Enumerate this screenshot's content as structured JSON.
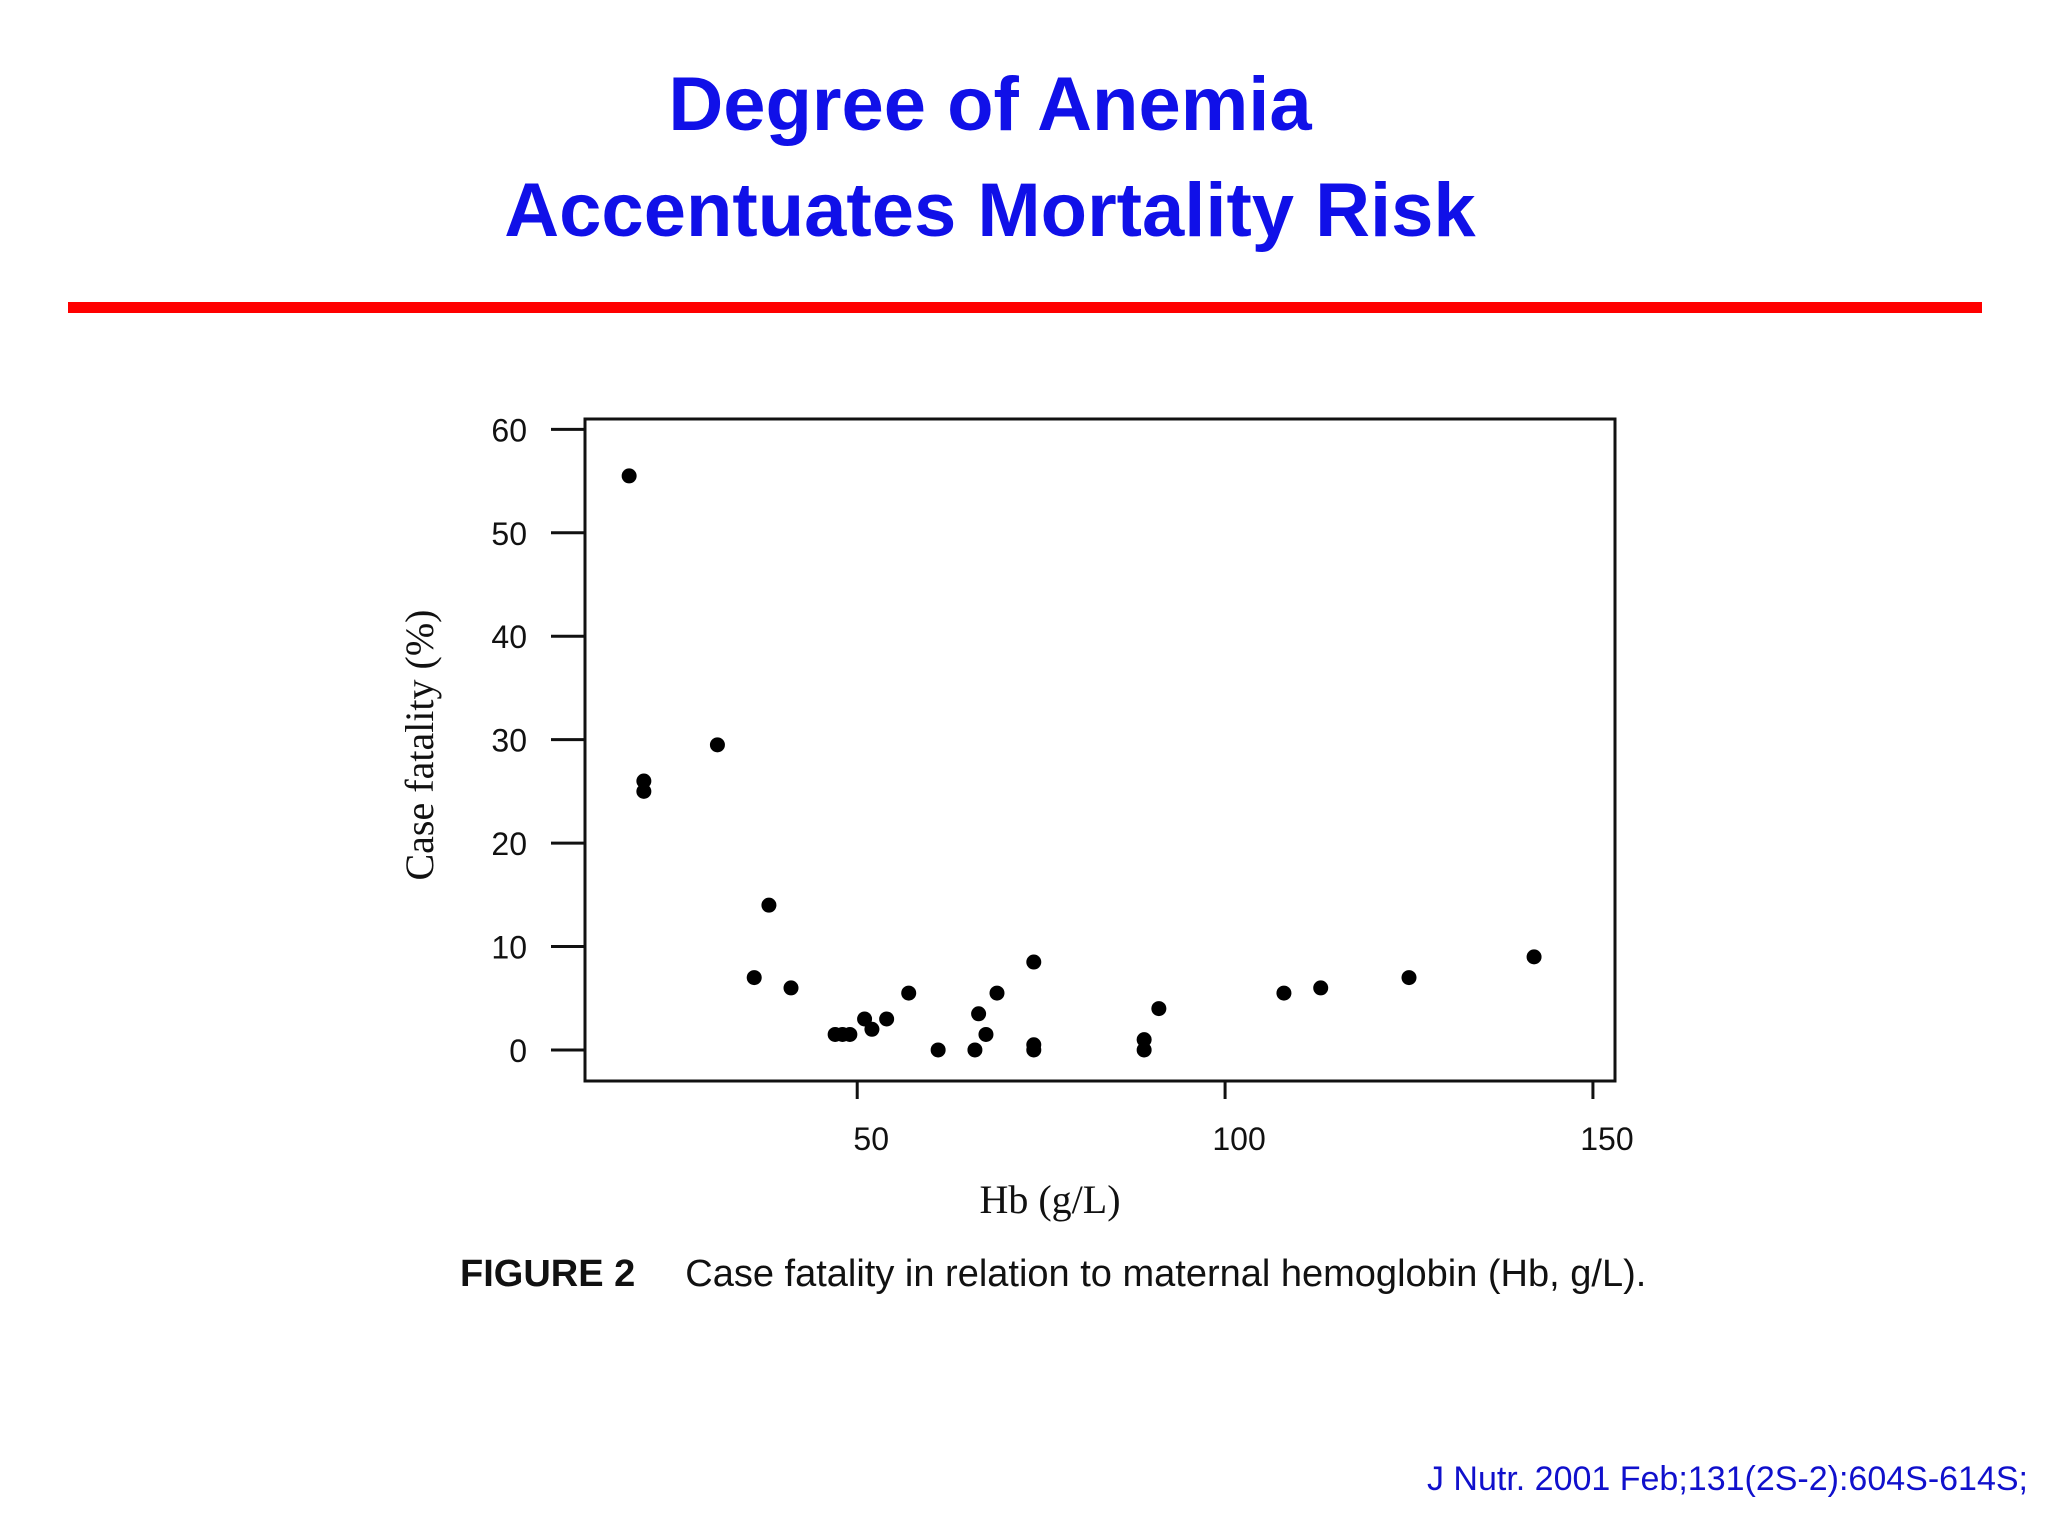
{
  "slide": {
    "title_line1": "Degree of Anemia",
    "title_line2": "Accentuates Mortality Risk",
    "rule_color": "#ff0000",
    "title_color": "#1010e8"
  },
  "chart_data": {
    "type": "scatter",
    "xlabel": "Hb (g/L)",
    "ylabel": "Case fatality (%)",
    "xlim": [
      13,
      153
    ],
    "ylim": [
      -3,
      61
    ],
    "x_ticks": [
      50,
      100,
      150
    ],
    "y_ticks": [
      0,
      10,
      20,
      30,
      40,
      50,
      60
    ],
    "x_tick_labels": [
      "50",
      "100",
      "150"
    ],
    "y_tick_labels": [
      "0",
      "10",
      "20",
      "30",
      "40",
      "50",
      "60"
    ],
    "grid": false,
    "points": [
      {
        "x": 19,
        "y": 55.5
      },
      {
        "x": 21,
        "y": 26
      },
      {
        "x": 21,
        "y": 25
      },
      {
        "x": 31,
        "y": 29.5
      },
      {
        "x": 36,
        "y": 7
      },
      {
        "x": 38,
        "y": 14
      },
      {
        "x": 41,
        "y": 6
      },
      {
        "x": 47,
        "y": 1.5
      },
      {
        "x": 48,
        "y": 1.5
      },
      {
        "x": 49,
        "y": 1.5
      },
      {
        "x": 51,
        "y": 3
      },
      {
        "x": 52,
        "y": 2
      },
      {
        "x": 54,
        "y": 3
      },
      {
        "x": 57,
        "y": 5.5
      },
      {
        "x": 61,
        "y": 0
      },
      {
        "x": 66,
        "y": 0
      },
      {
        "x": 66.5,
        "y": 3.5
      },
      {
        "x": 67.5,
        "y": 1.5
      },
      {
        "x": 69,
        "y": 5.5
      },
      {
        "x": 74,
        "y": 8.5
      },
      {
        "x": 74,
        "y": 0.5
      },
      {
        "x": 74,
        "y": 0
      },
      {
        "x": 89,
        "y": 1
      },
      {
        "x": 89,
        "y": 0
      },
      {
        "x": 91,
        "y": 4
      },
      {
        "x": 108,
        "y": 5.5
      },
      {
        "x": 113,
        "y": 6
      },
      {
        "x": 125,
        "y": 7
      },
      {
        "x": 142,
        "y": 9
      }
    ]
  },
  "caption": {
    "label": "FIGURE 2",
    "text": "Case fatality in relation to maternal hemoglobin (Hb, g/L)."
  },
  "citation": "J Nutr. 2001 Feb;131(2S-2):604S-614S;"
}
